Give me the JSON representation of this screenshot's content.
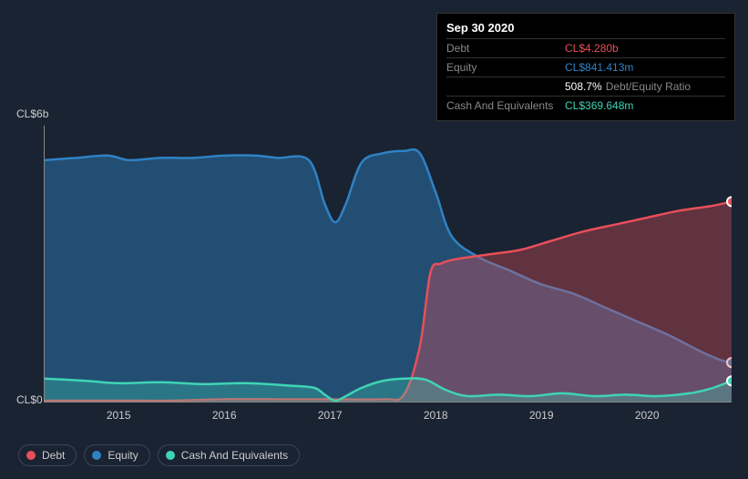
{
  "tooltip": {
    "date": "Sep 30 2020",
    "rows": [
      {
        "label": "Debt",
        "value": "CL$4.280b",
        "color": "#e84f5a"
      },
      {
        "label": "Equity",
        "value": "CL$841.413m",
        "color": "#2f82c4"
      },
      {
        "label": "",
        "value": "508.7%",
        "suffix": "Debt/Equity Ratio",
        "color": "#ffffff"
      },
      {
        "label": "Cash And Equivalents",
        "value": "CL$369.648m",
        "color": "#3fd4b4"
      }
    ]
  },
  "chart": {
    "type": "area",
    "background_color": "#1a2332",
    "axis_color": "#888888",
    "label_color": "#cccccc",
    "label_fontsize": 12,
    "y_axis": {
      "top_label": "CL$6b",
      "bottom_label": "CL$0"
    },
    "x_axis": {
      "ticks": [
        "2015",
        "2016",
        "2017",
        "2018",
        "2019",
        "2020"
      ],
      "xmin": 2014.3,
      "xmax": 2020.8
    },
    "ymin": 0,
    "ymax": 6,
    "series": [
      {
        "name": "Equity",
        "color": "#2f82c4",
        "fill_opacity": 0.45,
        "line_width": 2.5,
        "points": [
          [
            2014.3,
            5.25
          ],
          [
            2014.6,
            5.3
          ],
          [
            2014.9,
            5.35
          ],
          [
            2015.1,
            5.25
          ],
          [
            2015.4,
            5.3
          ],
          [
            2015.7,
            5.3
          ],
          [
            2016.0,
            5.35
          ],
          [
            2016.3,
            5.35
          ],
          [
            2016.5,
            5.3
          ],
          [
            2016.8,
            5.25
          ],
          [
            2016.95,
            4.3
          ],
          [
            2017.05,
            3.9
          ],
          [
            2017.15,
            4.3
          ],
          [
            2017.3,
            5.2
          ],
          [
            2017.5,
            5.4
          ],
          [
            2017.7,
            5.45
          ],
          [
            2017.85,
            5.4
          ],
          [
            2018.0,
            4.55
          ],
          [
            2018.15,
            3.6
          ],
          [
            2018.4,
            3.15
          ],
          [
            2018.7,
            2.85
          ],
          [
            2019.0,
            2.55
          ],
          [
            2019.3,
            2.35
          ],
          [
            2019.6,
            2.05
          ],
          [
            2019.9,
            1.75
          ],
          [
            2020.2,
            1.45
          ],
          [
            2020.5,
            1.1
          ],
          [
            2020.7,
            0.9
          ],
          [
            2020.8,
            0.85
          ]
        ],
        "end_marker": true,
        "end_marker_y": 0.85
      },
      {
        "name": "Debt",
        "color": "#e84f5a",
        "fill_opacity": 0.35,
        "line_width": 2.5,
        "points": [
          [
            2014.3,
            0.02
          ],
          [
            2015.0,
            0.02
          ],
          [
            2015.5,
            0.02
          ],
          [
            2016.0,
            0.05
          ],
          [
            2016.5,
            0.05
          ],
          [
            2017.0,
            0.05
          ],
          [
            2017.5,
            0.05
          ],
          [
            2017.7,
            0.15
          ],
          [
            2017.85,
            1.2
          ],
          [
            2017.95,
            2.8
          ],
          [
            2018.05,
            3.0
          ],
          [
            2018.2,
            3.1
          ],
          [
            2018.5,
            3.2
          ],
          [
            2018.8,
            3.3
          ],
          [
            2019.1,
            3.5
          ],
          [
            2019.4,
            3.7
          ],
          [
            2019.7,
            3.85
          ],
          [
            2020.0,
            4.0
          ],
          [
            2020.3,
            4.15
          ],
          [
            2020.6,
            4.25
          ],
          [
            2020.8,
            4.35
          ]
        ],
        "end_marker": true,
        "end_marker_y": 4.35
      },
      {
        "name": "Cash And Equivalents",
        "color": "#3fd4b4",
        "fill_opacity": 0.3,
        "line_width": 2.5,
        "points": [
          [
            2014.3,
            0.5
          ],
          [
            2014.7,
            0.45
          ],
          [
            2015.0,
            0.4
          ],
          [
            2015.4,
            0.42
          ],
          [
            2015.8,
            0.38
          ],
          [
            2016.2,
            0.4
          ],
          [
            2016.6,
            0.35
          ],
          [
            2016.85,
            0.3
          ],
          [
            2016.95,
            0.15
          ],
          [
            2017.05,
            0.02
          ],
          [
            2017.15,
            0.12
          ],
          [
            2017.3,
            0.3
          ],
          [
            2017.5,
            0.45
          ],
          [
            2017.7,
            0.5
          ],
          [
            2017.9,
            0.48
          ],
          [
            2018.1,
            0.25
          ],
          [
            2018.3,
            0.12
          ],
          [
            2018.6,
            0.15
          ],
          [
            2018.9,
            0.12
          ],
          [
            2019.2,
            0.18
          ],
          [
            2019.5,
            0.12
          ],
          [
            2019.8,
            0.15
          ],
          [
            2020.1,
            0.12
          ],
          [
            2020.4,
            0.18
          ],
          [
            2020.6,
            0.28
          ],
          [
            2020.8,
            0.45
          ]
        ],
        "end_marker": true,
        "end_marker_y": 0.45
      }
    ]
  },
  "legend": {
    "border_color": "#3a4556",
    "items": [
      {
        "label": "Debt",
        "color": "#e84f5a"
      },
      {
        "label": "Equity",
        "color": "#2f82c4"
      },
      {
        "label": "Cash And Equivalents",
        "color": "#3fd4b4"
      }
    ]
  }
}
